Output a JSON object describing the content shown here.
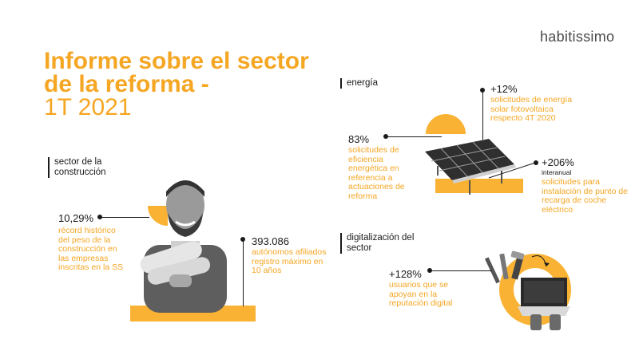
{
  "brand": "habitissimo",
  "title": {
    "line1": "Informe sobre el sector",
    "line2": "de la reforma -",
    "line3": "1T 2021"
  },
  "construction": {
    "label": "sector de la construcción",
    "stat1": {
      "value": "10,29%",
      "desc": "récord histórico del peso de la construcción en las empresas inscritas en la SS"
    },
    "stat2": {
      "value": "393.086",
      "desc": "autónomos afiliados registro máximo en 10 años"
    }
  },
  "energy": {
    "label": "energía",
    "stat1": {
      "value": "+12%",
      "desc": "solicitudes de energía solar fotovoltaica respecto 4T 2020"
    },
    "stat2": {
      "value": "83%",
      "desc": "solicitudes de eficiencia energética en referencia a actuaciones de reforma"
    },
    "stat3": {
      "value": "+206%",
      "sub": "interanual",
      "desc": "solicitudes para instalación de punto de recarga de coche eléctrico"
    }
  },
  "digital": {
    "label": "digitalización del sector",
    "stat1": {
      "value": "+128%",
      "desc": "usuarios que se apoyan en la reputación digital"
    }
  },
  "icons": [
    "worker-photo",
    "solar-panel-illustration",
    "tools-laptop-illustration"
  ],
  "colors": {
    "accent": "#f5a623",
    "bar": "#f9b233",
    "text": "#1a1a1a"
  }
}
